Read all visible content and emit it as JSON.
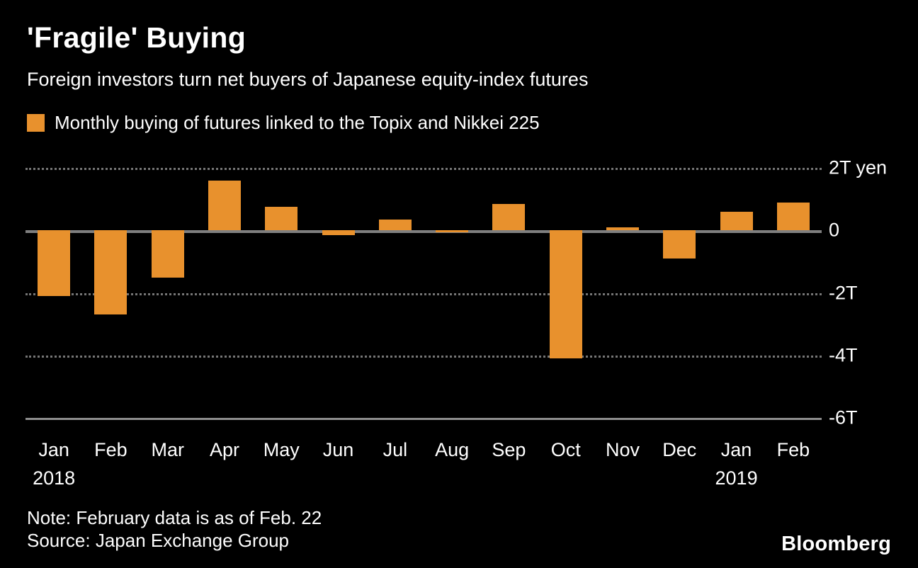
{
  "header": {
    "title": "'Fragile' Buying",
    "subtitle": "Foreign investors turn net buyers of Japanese equity-index futures"
  },
  "legend": {
    "label": "Monthly buying of futures linked to the Topix and Nikkei 225",
    "swatch_color": "#E8912D"
  },
  "chart_data": {
    "type": "bar",
    "title": "'Fragile' Buying",
    "subtitle": "Foreign investors turn net buyers of Japanese equity-index futures",
    "series_name": "Monthly buying of futures linked to the Topix and Nikkei 225",
    "unit": "trillion yen",
    "categories": [
      "Jan",
      "Feb",
      "Mar",
      "Apr",
      "May",
      "Jun",
      "Jul",
      "Aug",
      "Sep",
      "Oct",
      "Nov",
      "Dec",
      "Jan",
      "Feb"
    ],
    "year_labels": [
      "2018",
      "",
      "",
      "",
      "",
      "",
      "",
      "",
      "",
      "",
      "",
      "",
      "2019",
      ""
    ],
    "values": [
      -2.1,
      -2.7,
      -1.5,
      1.6,
      0.75,
      -0.15,
      0.35,
      -0.05,
      0.85,
      -4.1,
      0.1,
      -0.9,
      0.6,
      0.9
    ],
    "y_ticks": [
      {
        "value": 2,
        "label": "2T yen",
        "style": "dotted"
      },
      {
        "value": 0,
        "label": "0",
        "style": "solid"
      },
      {
        "value": -2,
        "label": "-2T",
        "style": "dotted"
      },
      {
        "value": -4,
        "label": "-4T",
        "style": "dotted"
      },
      {
        "value": -6,
        "label": "-6T",
        "style": "axis"
      }
    ],
    "ylim": [
      -6,
      2.3
    ],
    "bar_color": "#E8912D",
    "grid": "horizontal dotted",
    "legend_position": "top-left",
    "axis_label_side": "right"
  },
  "footer": {
    "note": "Note: February data is as of Feb. 22",
    "source": "Source: Japan Exchange Group",
    "logo_text": "Bloomberg"
  }
}
